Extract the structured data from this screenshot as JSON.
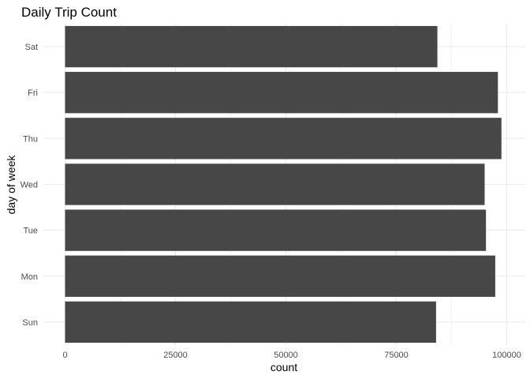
{
  "chart_data": {
    "type": "bar",
    "orientation": "horizontal",
    "title": "Daily Trip Count",
    "xlabel": "count",
    "ylabel": "day of week",
    "categories": [
      "Sun",
      "Mon",
      "Tue",
      "Wed",
      "Thu",
      "Fri",
      "Sat"
    ],
    "values": [
      84000,
      97400,
      95300,
      95000,
      98800,
      98000,
      84300
    ],
    "xlim": [
      0,
      100000
    ],
    "x_ticks": [
      0,
      25000,
      50000,
      75000,
      100000
    ],
    "x_tick_labels": [
      "0",
      "25000",
      "50000",
      "75000",
      "100000"
    ],
    "grid": true,
    "legend": "none",
    "colors": {
      "bar": "#474747",
      "grid": "#ebebeb",
      "background": "#ffffff"
    }
  }
}
